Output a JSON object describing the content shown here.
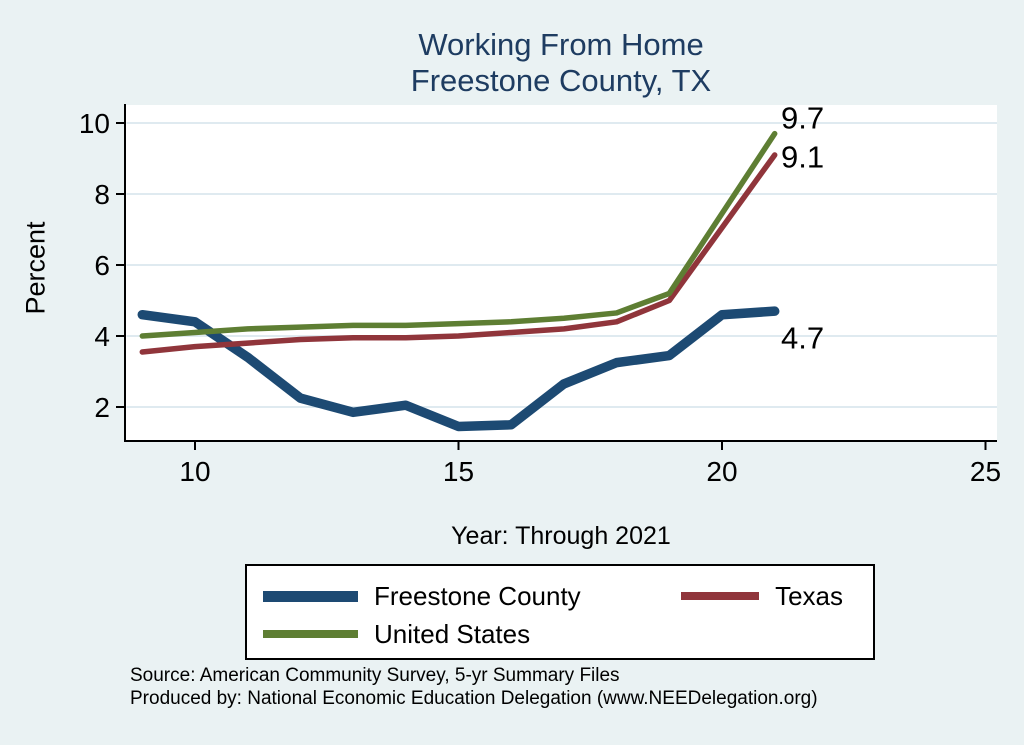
{
  "title": {
    "line1": "Working From Home",
    "line2": "Freestone County, TX"
  },
  "colors": {
    "background": "#eaf2f3",
    "plot_background": "#ffffff",
    "gridline": "#dfeaf0",
    "axis": "#000000",
    "title_text": "#1e3c61",
    "freestone_line": "#1d4a73",
    "texas_line": "#90353b",
    "us_line": "#5e7e33"
  },
  "chart_data": {
    "type": "line",
    "title": "Working From Home — Freestone County, TX",
    "xlabel": "Year: Through 2021",
    "ylabel": "Percent",
    "grid": "horizontal",
    "legend_position": "below",
    "x": [
      9,
      10,
      11,
      12,
      13,
      14,
      15,
      16,
      17,
      18,
      19,
      20,
      21
    ],
    "xticks": [
      10,
      15,
      20,
      25
    ],
    "yticks": [
      2,
      4,
      6,
      8,
      10
    ],
    "xlim": [
      8.6,
      25.2
    ],
    "ylim": [
      1.0,
      10.5
    ],
    "series": [
      {
        "name": "Freestone County",
        "color": "#1d4a73",
        "width": 9.5,
        "values": [
          4.6,
          4.4,
          3.4,
          2.25,
          1.85,
          2.05,
          1.45,
          1.5,
          2.65,
          3.25,
          3.45,
          4.6,
          4.7
        ]
      },
      {
        "name": "Texas",
        "color": "#90353b",
        "width": 5.5,
        "values": [
          3.55,
          3.7,
          3.8,
          3.9,
          3.95,
          3.95,
          4.0,
          4.1,
          4.2,
          4.4,
          5.0,
          7.05,
          9.1
        ]
      },
      {
        "name": "United States",
        "color": "#5e7e33",
        "width": 5.5,
        "values": [
          4.0,
          4.1,
          4.2,
          4.25,
          4.3,
          4.3,
          4.35,
          4.4,
          4.5,
          4.65,
          5.2,
          7.45,
          9.7
        ]
      }
    ],
    "annotations": [
      {
        "text": "9.7",
        "series": "United States",
        "year": 21,
        "value": 9.7
      },
      {
        "text": "9.1",
        "series": "Texas",
        "year": 21,
        "value": 9.1
      },
      {
        "text": "4.7",
        "series": "Freestone County",
        "year": 21,
        "value": 4.7
      }
    ]
  },
  "legend": {
    "items": [
      {
        "label": "Freestone County"
      },
      {
        "label": "Texas"
      },
      {
        "label": "United States"
      }
    ]
  },
  "footer": {
    "line1": "Source: American Community Survey, 5-yr Summary Files",
    "line2": "Produced by: National Economic Education Delegation (www.NEEDelegation.org)"
  }
}
